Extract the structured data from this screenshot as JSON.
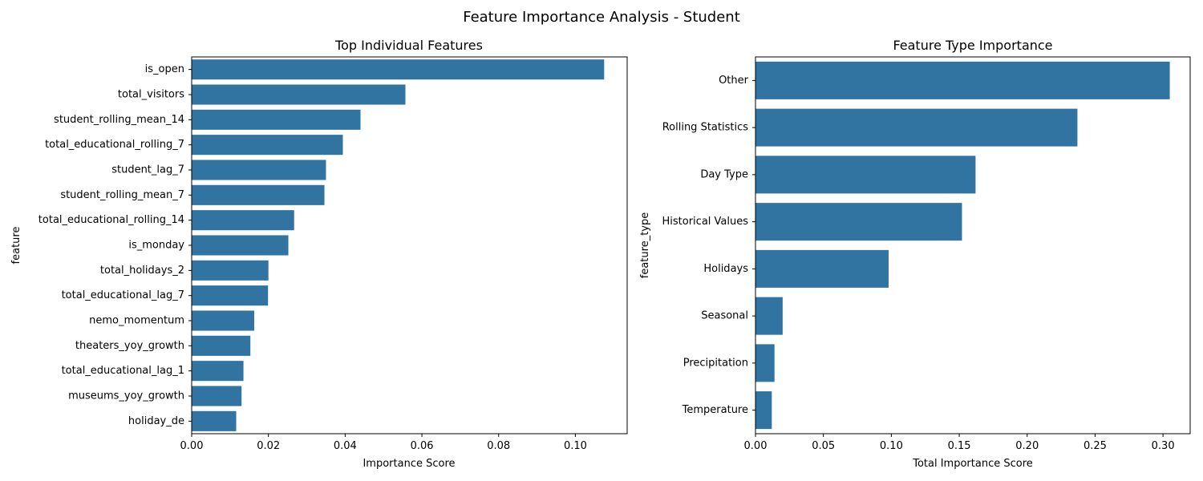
{
  "figure_title": "Feature Importance Analysis - Student",
  "bar_color": "#3274a1",
  "chart_data": [
    {
      "type": "bar",
      "orientation": "horizontal",
      "title": "Top Individual Features",
      "xlabel": "Importance Score",
      "ylabel": "feature",
      "xlim": [
        0,
        0.1135
      ],
      "xticks": [
        "0.00",
        "0.02",
        "0.04",
        "0.06",
        "0.08",
        "0.10"
      ],
      "xtick_values": [
        0,
        0.02,
        0.04,
        0.06,
        0.08,
        0.1
      ],
      "categories": [
        "is_open",
        "total_visitors",
        "student_rolling_mean_14",
        "total_educational_rolling_7",
        "student_lag_7",
        "student_rolling_mean_7",
        "total_educational_rolling_14",
        "is_monday",
        "total_holidays_2",
        "total_educational_lag_7",
        "nemo_momentum",
        "theaters_yoy_growth",
        "total_educational_lag_1",
        "museums_yoy_growth",
        "holiday_de"
      ],
      "values": [
        0.1075,
        0.0557,
        0.044,
        0.0394,
        0.035,
        0.0346,
        0.0267,
        0.0252,
        0.02,
        0.0199,
        0.0163,
        0.0153,
        0.0135,
        0.013,
        0.0116
      ],
      "grid": false,
      "legend": "none"
    },
    {
      "type": "bar",
      "orientation": "horizontal",
      "title": "Feature Type Importance",
      "xlabel": "Total Importance Score",
      "ylabel": "feature_type",
      "xlim": [
        0,
        0.32
      ],
      "xticks": [
        "0.00",
        "0.05",
        "0.10",
        "0.15",
        "0.20",
        "0.25",
        "0.30"
      ],
      "xtick_values": [
        0,
        0.05,
        0.1,
        0.15,
        0.2,
        0.25,
        0.3
      ],
      "categories": [
        "Other",
        "Rolling Statistics",
        "Day Type",
        "Historical Values",
        "Holidays",
        "Seasonal",
        "Precipitation",
        "Temperature"
      ],
      "values": [
        0.305,
        0.237,
        0.162,
        0.152,
        0.098,
        0.02,
        0.014,
        0.012
      ],
      "grid": false,
      "legend": "none"
    }
  ]
}
